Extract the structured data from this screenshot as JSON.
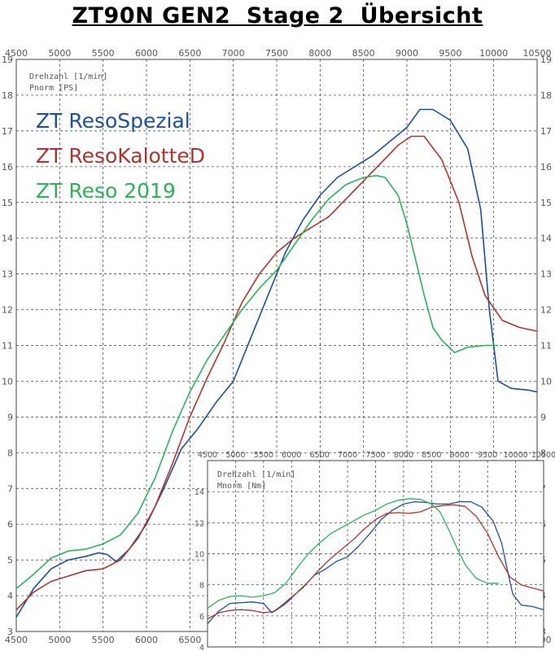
{
  "title": "ZT90N GEN2  Stage 2  Übersicht",
  "colors": {
    "blue": "#1f4e9a",
    "red": "#a8362f",
    "green": "#2fb05a"
  },
  "chart_data": [
    {
      "type": "line",
      "xlim": [
        4500,
        10500
      ],
      "ylim": [
        3,
        19
      ],
      "grid": true,
      "axis_label_lines": [
        "Drehzahl [1/min]",
        "Pnorm [PS]"
      ],
      "x_ticks": [
        "4500",
        "5000",
        "5500",
        "6000",
        "6500",
        "7000",
        "7500",
        "8000",
        "8500",
        "9000",
        "9500",
        "10000",
        "10500"
      ],
      "y_ticks": [
        "3",
        "4",
        "5",
        "6",
        "7",
        "8",
        "9",
        "10",
        "11",
        "12",
        "13",
        "14",
        "15",
        "16",
        "17",
        "18",
        "19"
      ],
      "legend": "top-left",
      "series": [
        {
          "name": "ZT ResoSpezial",
          "color": "#1f4e9a",
          "points": [
            [
              4500,
              3.4
            ],
            [
              4700,
              4.2
            ],
            [
              4900,
              4.75
            ],
            [
              5100,
              5.0
            ],
            [
              5300,
              5.1
            ],
            [
              5450,
              5.2
            ],
            [
              5550,
              5.15
            ],
            [
              5650,
              4.95
            ],
            [
              5800,
              5.3
            ],
            [
              6000,
              6.0
            ],
            [
              6200,
              7.0
            ],
            [
              6400,
              8.1
            ],
            [
              6600,
              8.7
            ],
            [
              6800,
              9.4
            ],
            [
              7000,
              10.0
            ],
            [
              7200,
              11.2
            ],
            [
              7400,
              12.4
            ],
            [
              7600,
              13.6
            ],
            [
              7800,
              14.5
            ],
            [
              8000,
              15.2
            ],
            [
              8200,
              15.7
            ],
            [
              8400,
              16.0
            ],
            [
              8600,
              16.3
            ],
            [
              8800,
              16.7
            ],
            [
              9000,
              17.1
            ],
            [
              9150,
              17.6
            ],
            [
              9300,
              17.6
            ],
            [
              9500,
              17.3
            ],
            [
              9700,
              16.5
            ],
            [
              9850,
              14.8
            ],
            [
              9950,
              12.0
            ],
            [
              10050,
              10.0
            ],
            [
              10200,
              9.8
            ],
            [
              10400,
              9.75
            ],
            [
              10500,
              9.7
            ]
          ]
        },
        {
          "name": "ZT ResoKalotteD",
          "color": "#a8362f",
          "points": [
            [
              4500,
              3.6
            ],
            [
              4700,
              4.1
            ],
            [
              4900,
              4.4
            ],
            [
              5100,
              4.55
            ],
            [
              5300,
              4.7
            ],
            [
              5500,
              4.75
            ],
            [
              5700,
              5.0
            ],
            [
              5900,
              5.6
            ],
            [
              6100,
              6.5
            ],
            [
              6300,
              7.7
            ],
            [
              6500,
              9.0
            ],
            [
              6700,
              10.1
            ],
            [
              6900,
              11.1
            ],
            [
              7100,
              12.2
            ],
            [
              7300,
              13.0
            ],
            [
              7500,
              13.6
            ],
            [
              7700,
              14.0
            ],
            [
              7900,
              14.3
            ],
            [
              8100,
              14.6
            ],
            [
              8300,
              15.1
            ],
            [
              8500,
              15.6
            ],
            [
              8700,
              16.1
            ],
            [
              8900,
              16.6
            ],
            [
              9050,
              16.85
            ],
            [
              9200,
              16.85
            ],
            [
              9400,
              16.2
            ],
            [
              9600,
              15.0
            ],
            [
              9750,
              13.5
            ],
            [
              9900,
              12.4
            ],
            [
              10100,
              11.7
            ],
            [
              10300,
              11.5
            ],
            [
              10500,
              11.4
            ]
          ]
        },
        {
          "name": "ZT Reso 2019",
          "color": "#2fb05a",
          "points": [
            [
              4500,
              4.2
            ],
            [
              4700,
              4.6
            ],
            [
              4900,
              5.05
            ],
            [
              5100,
              5.25
            ],
            [
              5300,
              5.3
            ],
            [
              5500,
              5.45
            ],
            [
              5700,
              5.7
            ],
            [
              5900,
              6.3
            ],
            [
              6100,
              7.3
            ],
            [
              6300,
              8.6
            ],
            [
              6500,
              9.7
            ],
            [
              6700,
              10.6
            ],
            [
              6900,
              11.3
            ],
            [
              7100,
              12.0
            ],
            [
              7300,
              12.6
            ],
            [
              7500,
              13.1
            ],
            [
              7700,
              13.8
            ],
            [
              7900,
              14.5
            ],
            [
              8100,
              15.1
            ],
            [
              8300,
              15.5
            ],
            [
              8500,
              15.7
            ],
            [
              8650,
              15.75
            ],
            [
              8750,
              15.7
            ],
            [
              8900,
              15.2
            ],
            [
              9000,
              14.4
            ],
            [
              9100,
              13.4
            ],
            [
              9200,
              12.4
            ],
            [
              9300,
              11.5
            ],
            [
              9400,
              11.15
            ],
            [
              9550,
              10.8
            ],
            [
              9700,
              10.95
            ],
            [
              9900,
              11.0
            ],
            [
              10050,
              11.0
            ]
          ]
        }
      ]
    },
    {
      "type": "line",
      "xlim": [
        4500,
        10500
      ],
      "ylim": [
        4,
        16
      ],
      "grid": true,
      "axis_label_lines": [
        "Drehzahl [1/min]",
        "Mnorm [Nm]"
      ],
      "x_ticks": [
        "4500",
        "5000",
        "5500",
        "6000",
        "6500",
        "7000",
        "7500",
        "8000",
        "8500",
        "9000",
        "9500",
        "10000",
        "10500"
      ],
      "y_ticks": [
        "4",
        "6",
        "8",
        "10",
        "12",
        "14"
      ],
      "series": [
        {
          "color": "#1f4e9a",
          "points": [
            [
              4500,
              5.5
            ],
            [
              4700,
              6.3
            ],
            [
              4900,
              6.8
            ],
            [
              5100,
              6.85
            ],
            [
              5300,
              6.9
            ],
            [
              5500,
              6.8
            ],
            [
              5650,
              6.2
            ],
            [
              5800,
              6.6
            ],
            [
              6000,
              7.2
            ],
            [
              6200,
              7.8
            ],
            [
              6400,
              8.6
            ],
            [
              6600,
              9.0
            ],
            [
              6800,
              9.5
            ],
            [
              7000,
              9.8
            ],
            [
              7200,
              10.5
            ],
            [
              7400,
              11.3
            ],
            [
              7600,
              12.2
            ],
            [
              7800,
              12.8
            ],
            [
              8000,
              13.2
            ],
            [
              8200,
              13.35
            ],
            [
              8400,
              13.3
            ],
            [
              8600,
              13.2
            ],
            [
              8800,
              13.2
            ],
            [
              9000,
              13.35
            ],
            [
              9200,
              13.35
            ],
            [
              9400,
              13.0
            ],
            [
              9600,
              12.1
            ],
            [
              9750,
              10.7
            ],
            [
              9850,
              9.0
            ],
            [
              9950,
              7.4
            ],
            [
              10100,
              6.7
            ],
            [
              10300,
              6.6
            ],
            [
              10500,
              6.4
            ]
          ]
        },
        {
          "color": "#a8362f",
          "points": [
            [
              4500,
              5.8
            ],
            [
              4700,
              6.2
            ],
            [
              4900,
              6.35
            ],
            [
              5100,
              6.4
            ],
            [
              5300,
              6.35
            ],
            [
              5500,
              6.2
            ],
            [
              5700,
              6.3
            ],
            [
              5900,
              6.8
            ],
            [
              6100,
              7.5
            ],
            [
              6300,
              8.2
            ],
            [
              6500,
              9.0
            ],
            [
              6700,
              9.7
            ],
            [
              6900,
              10.3
            ],
            [
              7100,
              10.9
            ],
            [
              7300,
              11.6
            ],
            [
              7500,
              12.2
            ],
            [
              7700,
              12.6
            ],
            [
              7900,
              12.65
            ],
            [
              8100,
              12.6
            ],
            [
              8300,
              12.7
            ],
            [
              8500,
              13.0
            ],
            [
              8700,
              13.1
            ],
            [
              8900,
              13.15
            ],
            [
              9100,
              13.05
            ],
            [
              9300,
              12.4
            ],
            [
              9500,
              11.3
            ],
            [
              9700,
              9.8
            ],
            [
              9900,
              8.5
            ],
            [
              10100,
              8.0
            ],
            [
              10300,
              7.8
            ],
            [
              10500,
              7.6
            ]
          ]
        },
        {
          "color": "#2fb05a",
          "points": [
            [
              4500,
              6.5
            ],
            [
              4700,
              7.0
            ],
            [
              4900,
              7.25
            ],
            [
              5100,
              7.3
            ],
            [
              5300,
              7.2
            ],
            [
              5500,
              7.3
            ],
            [
              5700,
              7.5
            ],
            [
              5900,
              8.1
            ],
            [
              6100,
              9.1
            ],
            [
              6300,
              10.0
            ],
            [
              6500,
              10.7
            ],
            [
              6700,
              11.3
            ],
            [
              6900,
              11.7
            ],
            [
              7100,
              12.1
            ],
            [
              7300,
              12.5
            ],
            [
              7500,
              12.8
            ],
            [
              7700,
              13.2
            ],
            [
              7900,
              13.45
            ],
            [
              8100,
              13.55
            ],
            [
              8300,
              13.5
            ],
            [
              8500,
              13.2
            ],
            [
              8650,
              12.7
            ],
            [
              8800,
              11.6
            ],
            [
              8950,
              10.4
            ],
            [
              9100,
              9.3
            ],
            [
              9300,
              8.4
            ],
            [
              9500,
              8.1
            ],
            [
              9700,
              8.1
            ]
          ]
        }
      ]
    }
  ]
}
